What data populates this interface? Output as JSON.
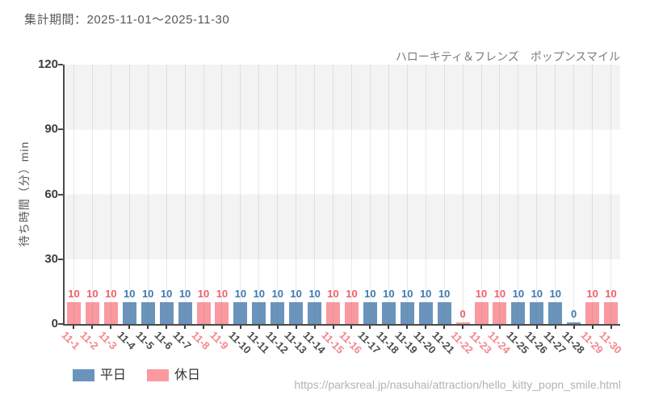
{
  "header": {
    "period_label": "集計期間：2025-11-01～2025-11-30"
  },
  "chart_data": {
    "type": "bar",
    "title": "ハローキティ＆フレンズ　ポップンスマイル",
    "xlabel": "",
    "ylabel": "待ち時間（分）min",
    "ylim": [
      0,
      120
    ],
    "yticks": [
      0,
      30,
      60,
      90,
      120
    ],
    "grid": "vertical",
    "legend_position": "bottom-left",
    "band_background": [
      "#ffffff",
      "#f3f3f3"
    ],
    "categories": [
      "11-1",
      "11-2",
      "11-3",
      "11-4",
      "11-5",
      "11-6",
      "11-7",
      "11-8",
      "11-9",
      "11-10",
      "11-11",
      "11-12",
      "11-13",
      "11-14",
      "11-15",
      "11-16",
      "11-17",
      "11-18",
      "11-19",
      "11-20",
      "11-21",
      "11-22",
      "11-23",
      "11-24",
      "11-25",
      "11-26",
      "11-27",
      "11-28",
      "11-29",
      "11-30"
    ],
    "values": [
      10,
      10,
      10,
      10,
      10,
      10,
      10,
      10,
      10,
      10,
      10,
      10,
      10,
      10,
      10,
      10,
      10,
      10,
      10,
      10,
      10,
      0,
      10,
      10,
      10,
      10,
      10,
      0,
      10,
      10
    ],
    "day_types": [
      "休日",
      "休日",
      "休日",
      "平日",
      "平日",
      "平日",
      "平日",
      "休日",
      "休日",
      "平日",
      "平日",
      "平日",
      "平日",
      "平日",
      "休日",
      "休日",
      "平日",
      "平日",
      "平日",
      "平日",
      "平日",
      "休日",
      "休日",
      "休日",
      "平日",
      "平日",
      "平日",
      "平日",
      "休日",
      "休日"
    ],
    "series": [
      {
        "name": "平日",
        "key": "weekday",
        "color": "#6b94bd",
        "value_label_color": "#3e79b4",
        "tick_label_color": "#4d4d4d"
      },
      {
        "name": "休日",
        "key": "holiday",
        "color": "#fa99a0",
        "value_label_color": "#f15f67",
        "tick_label_color": "#f5868d"
      }
    ]
  },
  "footer": {
    "url": "https://parksreal.jp/nasuhai/attraction/hello_kitty_popn_smile.html"
  }
}
